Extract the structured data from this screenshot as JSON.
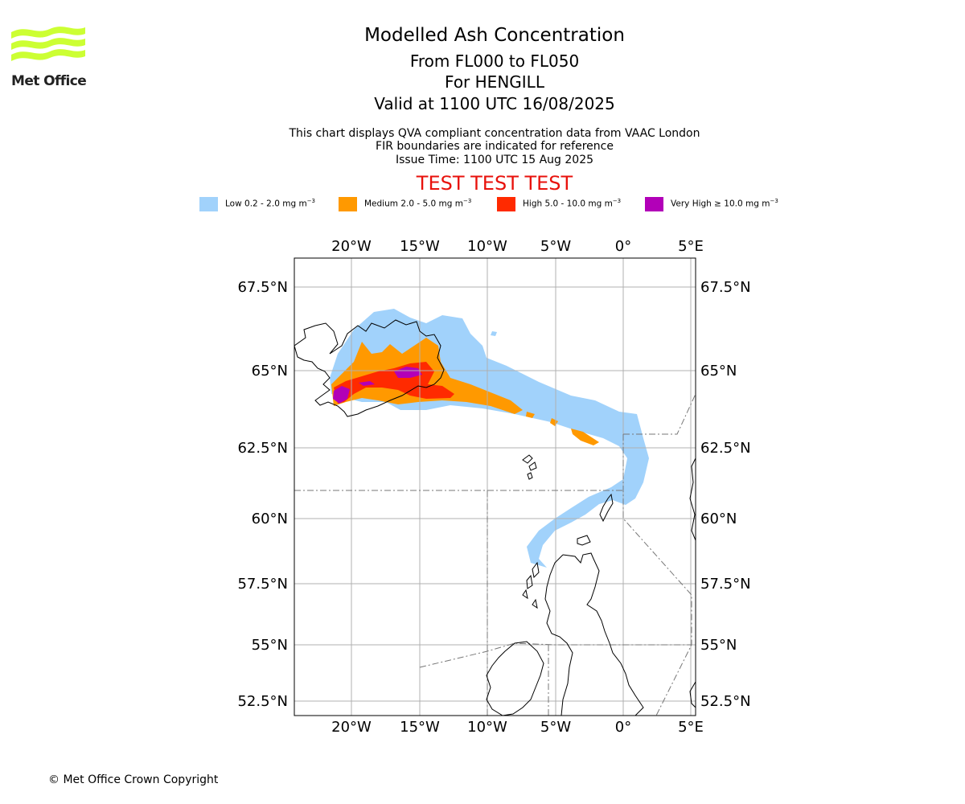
{
  "header": {
    "title": "Modelled Ash Concentration",
    "level_range": "From FL000 to FL050",
    "volcano": "For HENGILL",
    "valid_time": "Valid at 1100 UTC 16/08/2025",
    "description": "This chart displays QVA compliant concentration data from VAAC London",
    "fir_note": "FIR boundaries are indicated for reference",
    "issue_time": "Issue Time: 1100 UTC 15 Aug 2025",
    "test_banner": "TEST TEST TEST"
  },
  "logo": {
    "text": "Met Office",
    "color": "#ccff33"
  },
  "legend": [
    {
      "label": "Low 0.2 - 2.0 mg m",
      "sup": "−3",
      "color": "#a1d2fb"
    },
    {
      "label": "Medium 2.0 - 5.0 mg m",
      "sup": "−3",
      "color": "#ff9900"
    },
    {
      "label": "High 5.0 - 10.0 mg m",
      "sup": "−3",
      "color": "#ff2a00"
    },
    {
      "label": "Very High ≥ 10.0 mg m",
      "sup": "−3",
      "color": "#b200b8"
    }
  ],
  "map": {
    "lon_ticks": [
      "20°W",
      "15°W",
      "10°W",
      "5°W",
      "0°",
      "5°E"
    ],
    "lat_ticks": [
      "67.5°N",
      "65°N",
      "62.5°N",
      "60°N",
      "57.5°N",
      "55°N",
      "52.5°N"
    ]
  },
  "footer": {
    "copyright": "© Met Office Crown Copyright"
  }
}
